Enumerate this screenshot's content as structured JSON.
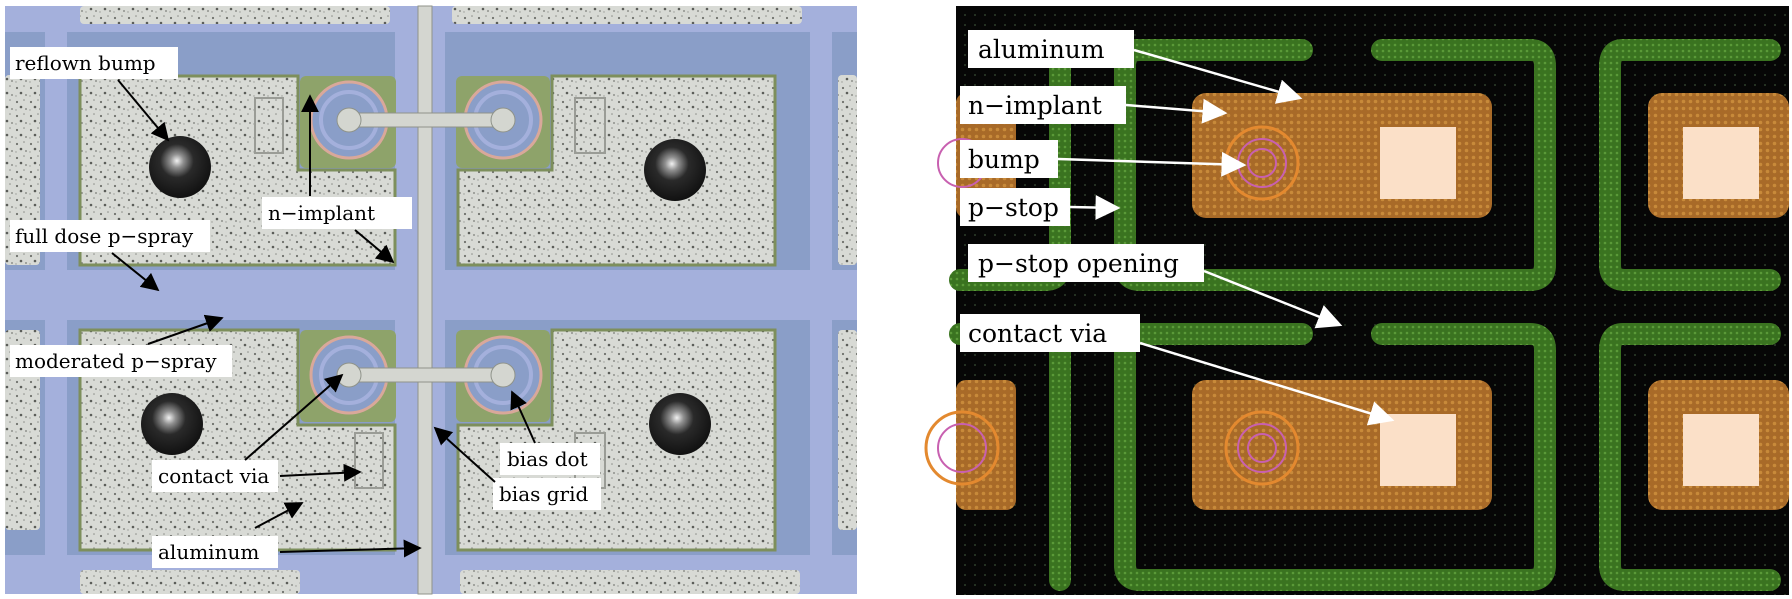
{
  "left_panel": {
    "labels": {
      "reflown_bump": "reflown bump",
      "n_implant": "n−implant",
      "full_dose_p_spray": "full dose p−spray",
      "moderated_p_spray": "moderated p−spray",
      "contact_via": "contact via",
      "bias_dot": "bias dot",
      "bias_grid": "bias grid",
      "aluminum": "aluminum"
    },
    "colors": {
      "p_spray": "#8a9ec8",
      "moderated_p_spray": "#a4b0dc",
      "aluminum": "#d7d9d4",
      "n_implant": "#8ea36a",
      "bump": "#1a1a1a"
    }
  },
  "right_panel": {
    "labels": {
      "aluminum": "aluminum",
      "n_implant": "n−implant",
      "bump": "bump",
      "p_stop": "p−stop",
      "p_stop_opening": "p−stop opening",
      "contact_via": "contact via"
    },
    "colors": {
      "background": "#050505",
      "p_stop": "#3f7a22",
      "n_implant": "#b5732c",
      "contact_via": "#fbe0c8",
      "bump": "#c860b0",
      "bump_ring": "#e3892f"
    }
  }
}
